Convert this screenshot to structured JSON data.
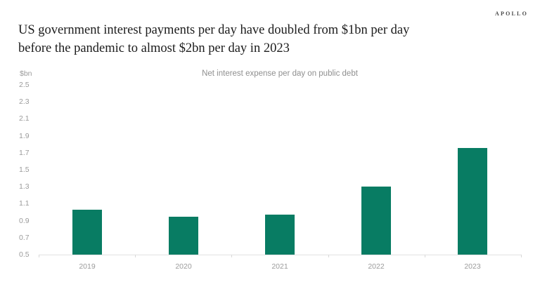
{
  "brand": {
    "logo_text": "APOLLO"
  },
  "title": {
    "line1": "US government interest payments per day have doubled from $1bn per day",
    "line2": "before the pandemic to almost $2bn per day in 2023"
  },
  "chart_data": {
    "type": "bar",
    "title": "Net interest expense per day on public debt",
    "unit_label": "$bn",
    "categories": [
      "2019",
      "2020",
      "2021",
      "2022",
      "2023"
    ],
    "values": [
      1.03,
      0.95,
      0.97,
      1.3,
      1.76
    ],
    "ylim": [
      0.5,
      2.5
    ],
    "ytick_step": 0.2,
    "yticks": [
      2.5,
      2.3,
      2.1,
      1.9,
      1.7,
      1.5,
      1.3,
      1.1,
      0.9,
      0.7,
      0.5
    ],
    "xlabel": "",
    "ylabel": "$bn",
    "grid": false,
    "legend": "none",
    "bar_color": "#087c63",
    "axis_color": "#e2e2e2",
    "tick_color": "#d8d8d8",
    "label_color": "#9b9b9b"
  }
}
